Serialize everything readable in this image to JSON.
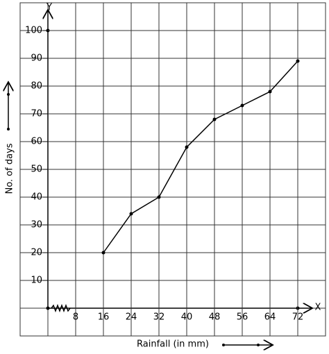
{
  "chart_data": {
    "type": "line",
    "xlabel": "Rainfall (in mm)",
    "ylabel": "No. of days",
    "x_axis_name": "X",
    "y_axis_name": "Y",
    "x": [
      16,
      24,
      32,
      40,
      48,
      56,
      64,
      72
    ],
    "values": [
      20,
      34,
      40,
      58,
      68,
      73,
      78,
      89
    ],
    "color": "#000000",
    "xlim": [
      -8,
      80
    ],
    "ylim": [
      -10,
      110
    ],
    "xticks": [
      8,
      16,
      24,
      32,
      40,
      48,
      56,
      64,
      72
    ],
    "yticks": [
      10,
      20,
      30,
      40,
      50,
      60,
      70,
      80,
      90,
      100
    ],
    "grid": true
  }
}
